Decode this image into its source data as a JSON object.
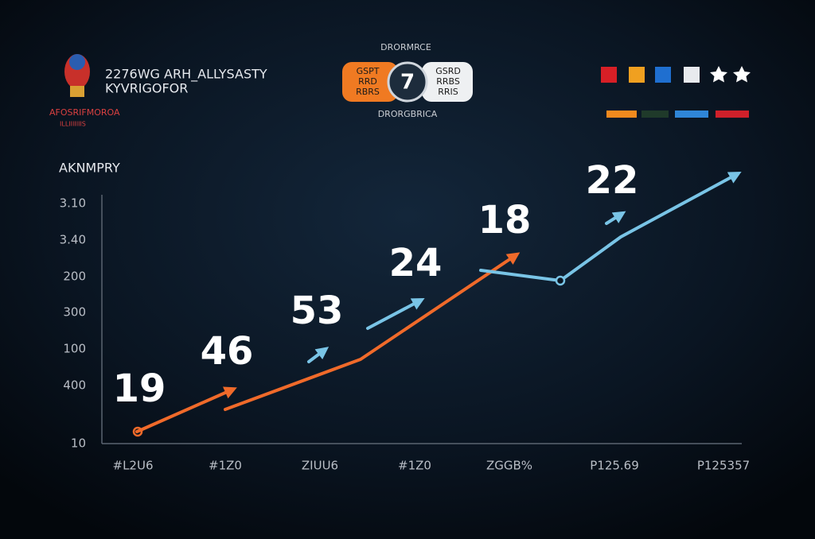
{
  "header": {
    "title": "2276WG ARH_ALLYSASTY",
    "subtitle": "KYVRIGOFOR",
    "logo_text": "AFOSRIFMOROA",
    "logo_subtext": "ILLIIIIIIIS"
  },
  "match": {
    "top": "DRORMRCE",
    "left_box": [
      "GSPT",
      "RRD",
      "RBRS"
    ],
    "center": "7",
    "right_box": [
      "GSRD",
      "RRBS",
      "RRIS"
    ],
    "bottom": "DRORGBRICA"
  },
  "chart": {
    "title": "AKNMPRY",
    "y_labels": [
      "3.10",
      "3.40",
      "200",
      "300",
      "100",
      "400",
      "10"
    ],
    "x_labels": [
      "#L2U6",
      "#1Z0",
      "ZIUU6",
      "#1Z0",
      "ZGGB%",
      "P125.69",
      "P125357"
    ],
    "point_labels": [
      "19",
      "46",
      "53",
      "24",
      "18",
      "22"
    ]
  }
}
